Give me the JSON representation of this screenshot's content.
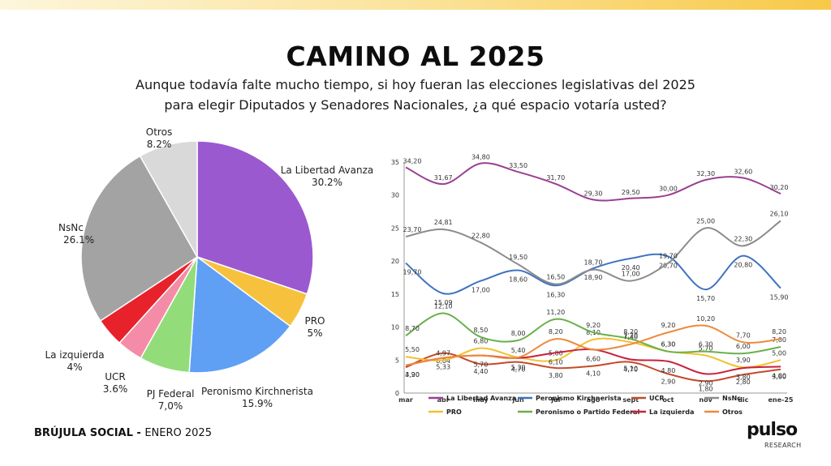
{
  "header": {
    "title": "CAMINO AL 2025",
    "subtitle_line1": "Aunque todavía falte mucho tiempo, si hoy fueran las elecciones legislativas del 2025",
    "subtitle_line2": "para elegir Diputados y Senadores Nacionales, ¿a qué espacio votaría usted?"
  },
  "footer": {
    "brand": "BRÚJULA SOCIAL",
    "sep": " - ",
    "date": "ENERO 2025"
  },
  "logo": {
    "text": "pulso",
    "sub": "RESEARCH"
  },
  "chart_data": [
    {
      "type": "pie",
      "slices": [
        {
          "label": "La Libertad Avanza",
          "value_label": "30.2%",
          "value": 30.2,
          "color": "#9b59d0"
        },
        {
          "label": "PRO",
          "value_label": "5%",
          "value": 5.0,
          "color": "#f6c23e"
        },
        {
          "label": "Peronismo Kirchnerista",
          "value_label": "15.9%",
          "value": 15.9,
          "color": "#5fa0f5"
        },
        {
          "label": "PJ Federal",
          "value_label": "7,0%",
          "value": 7.0,
          "color": "#92dd7a"
        },
        {
          "label": "UCR",
          "value_label": "3.6%",
          "value": 3.6,
          "color": "#f48ca8"
        },
        {
          "label": "La izquierda",
          "value_label": "4%",
          "value": 4.0,
          "color": "#e8222b"
        },
        {
          "label": "NsNc",
          "value_label": "26.1%",
          "value": 26.1,
          "color": "#a3a3a3"
        },
        {
          "label": "Otros",
          "value_label": "8.2%",
          "value": 8.2,
          "color": "#d9d9d9"
        }
      ]
    },
    {
      "type": "line",
      "categories": [
        "mar",
        "abr",
        "may",
        "jun",
        "jul",
        "ago",
        "sept",
        "oct",
        "nov",
        "dic",
        "ene-25"
      ],
      "ylim": [
        0,
        35
      ],
      "yticks": [
        "0",
        "5",
        "10",
        "15",
        "20",
        "25",
        "30",
        "35"
      ],
      "grid": false,
      "legend_position": "bottom",
      "series": [
        {
          "name": "La Libertad Avanza",
          "color": "#9b3f92",
          "values": [
            34.2,
            31.67,
            34.8,
            33.5,
            31.7,
            29.3,
            29.5,
            30.0,
            32.3,
            32.6,
            30.2
          ],
          "labels": [
            "34,20",
            "31,67",
            "34,80",
            "33,50",
            "31,70",
            "29,30",
            "29,50",
            "30,00",
            "32,30",
            "32,60",
            "30,20"
          ]
        },
        {
          "name": "Peronismo Kirchnerista",
          "color": "#3f73c0",
          "values": [
            19.7,
            15.09,
            17.0,
            18.6,
            16.3,
            18.9,
            20.4,
            20.7,
            15.7,
            20.8,
            15.9
          ],
          "labels": [
            "19,70",
            "15,09",
            "17,00",
            "18,60",
            "16,30",
            "18,90",
            "20,40",
            "20,70",
            "15,70",
            "20,80",
            "15,90"
          ]
        },
        {
          "name": "UCR",
          "color": "#c44a2a",
          "values": [
            3.9,
            6.04,
            4.4,
            4.7,
            3.8,
            4.1,
            4.7,
            2.9,
            1.8,
            2.8,
            3.6
          ],
          "labels": [
            "3,90",
            "6,04",
            "4,40",
            "4,70",
            "3,80",
            "4,10",
            "4,70",
            "2,90",
            "1,80",
            "2,80",
            "3,60"
          ]
        },
        {
          "name": "NsNc",
          "color": "#8c8c8c",
          "values": [
            23.7,
            24.81,
            22.8,
            19.5,
            16.5,
            18.7,
            17.0,
            19.7,
            25.0,
            22.3,
            26.1
          ],
          "labels": [
            "23,70",
            "24,81",
            "22,80",
            "19,50",
            "16,50",
            "18,70",
            "17,00",
            "19,70",
            "25,00",
            "22,30",
            "26,10"
          ]
        },
        {
          "name": "PRO",
          "color": "#f2c12e",
          "values": [
            5.5,
            4.97,
            6.8,
            5.4,
            5.0,
            8.1,
            7.7,
            6.3,
            5.7,
            3.9,
            5.0
          ],
          "labels": [
            "5,50",
            "4,97",
            "6,80",
            "5,40",
            "5,00",
            "8,10",
            "7,70",
            "6,30",
            "5,70",
            "3,90",
            "5,00"
          ]
        },
        {
          "name": "Peronismo o Partido Federal",
          "color": "#6ab04c",
          "values": [
            8.7,
            12.1,
            8.5,
            8.0,
            11.2,
            9.2,
            8.2,
            6.3,
            6.3,
            6.0,
            7.0
          ],
          "labels": [
            "8,70",
            "12,10",
            "8,50",
            "8,00",
            "11,20",
            "9,20",
            "8,20",
            "6,30",
            "6,30",
            "6,00",
            "7,00"
          ]
        },
        {
          "name": "La izquierda",
          "color": "#c8203f",
          "values": [
            4.2,
            5.33,
            5.7,
            5.3,
            6.1,
            6.6,
            5.1,
            4.8,
            2.9,
            3.8,
            4.0
          ],
          "labels": [
            "4,20",
            "5,33",
            "5,70",
            "5,30",
            "6,10",
            "6,60",
            "5,10",
            "4,80",
            "2,90",
            "3,80",
            "4,00"
          ]
        },
        {
          "name": "Otros",
          "color": "#ed8a3c",
          "values": [
            4.2,
            5.33,
            5.7,
            5.4,
            8.2,
            6.6,
            7.4,
            9.2,
            10.2,
            7.7,
            8.2
          ],
          "labels": [
            "",
            "",
            "",
            "",
            "8,20",
            "",
            "7,40",
            "9,20",
            "10,20",
            "7,70",
            "8,20"
          ]
        }
      ]
    }
  ]
}
